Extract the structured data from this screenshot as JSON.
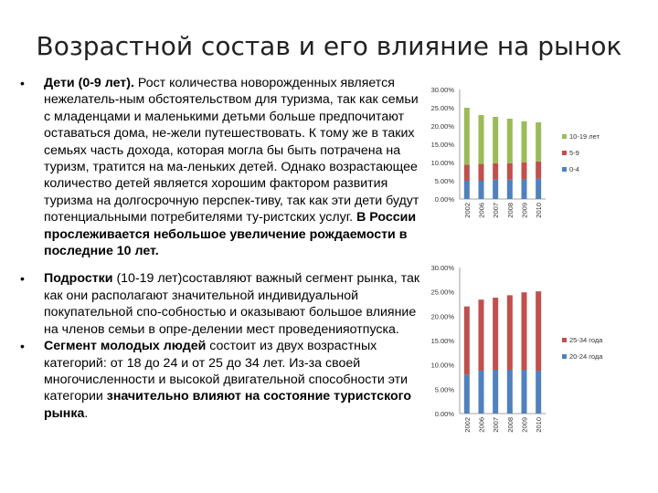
{
  "slide": {
    "title": "Возрастной состав и его влияние на рынок",
    "bullets": [
      {
        "bold": "Дети (0-9 лет).",
        "text": " Рост количества новорожденных является нежелатель-ным обстоятельством для туризма, так как семьи с младенцами и маленькими детьми больше предпочитают оставаться дома, не-жели путешествовать. К тому же в таких семьях часть дохода, которая могла бы быть потрачена на туризм, тратится на ма-леньких детей. Однако возрастающее количество детей является хорошим фактором развития туризма на долгосрочную перспек-тиву, так как эти дети будут потенциальными потребителями ту-ристских услуг. ",
        "bold2": "В России прослеживается небольшое увеличение рождаемости в последние 10 лет."
      },
      {
        "bold": "Подростки",
        "text": " (10-19 лет)составляют важный сегмент рынка, так как они располагают значительной индивидуальной покупательной спо-собностью и оказывают большое влияние на членов семьи в опре-делении мест проведенияотпуска.",
        "bold2": ""
      },
      {
        "bold": "Сегмент молодых людей",
        "text": " состоит из двух возрастных категорий: от 18 до 24 и от 25 до 34 лет. Из-за своей многочисленности и высокой двигательной способности эти категории ",
        "bold2": "значительно влияют на состояние туристского рынка",
        "tail": "."
      }
    ]
  },
  "chart_data": [
    {
      "type": "bar",
      "stacked": true,
      "categories": [
        "2002",
        "2006",
        "2007",
        "2008",
        "2009",
        "2010"
      ],
      "ylim": [
        0,
        30
      ],
      "yticks": [
        "0.00%",
        "5.00%",
        "10.00%",
        "15.00%",
        "20.00%",
        "25.00%",
        "30.00%"
      ],
      "legend_position": "right",
      "series": [
        {
          "name": "0-4",
          "color": "#4f81bd",
          "values": [
            5.0,
            5.0,
            5.3,
            5.3,
            5.4,
            5.6
          ]
        },
        {
          "name": "5-9",
          "color": "#c0504d",
          "values": [
            4.4,
            4.6,
            4.5,
            4.5,
            4.6,
            4.7
          ]
        },
        {
          "name": "10-19 лет",
          "color": "#9bbb59",
          "values": [
            15.6,
            13.4,
            12.7,
            12.2,
            11.3,
            10.7
          ]
        }
      ]
    },
    {
      "type": "bar",
      "stacked": true,
      "categories": [
        "2002",
        "2006",
        "2007",
        "2008",
        "2009",
        "2010"
      ],
      "ylim": [
        0,
        30
      ],
      "yticks": [
        "0.00%",
        "5.00%",
        "10.00%",
        "15.00%",
        "20.00%",
        "25.00%",
        "30.00%"
      ],
      "legend_position": "right",
      "series": [
        {
          "name": "20-24 года",
          "color": "#4f81bd",
          "values": [
            8.0,
            8.8,
            9.0,
            9.0,
            9.0,
            8.8
          ]
        },
        {
          "name": "25-34 года",
          "color": "#c0504d",
          "values": [
            14.0,
            14.6,
            14.8,
            15.3,
            15.9,
            16.3
          ]
        }
      ]
    }
  ]
}
